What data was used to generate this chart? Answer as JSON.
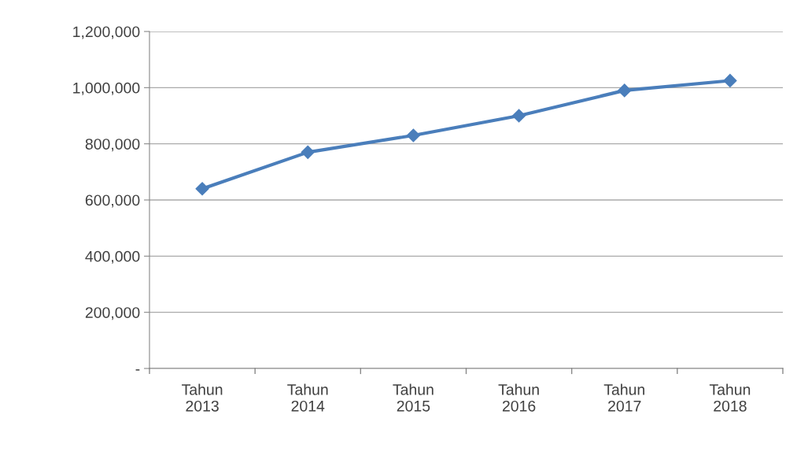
{
  "chart_data": {
    "type": "line",
    "categories": [
      "Tahun\n2013",
      "Tahun\n2014",
      "Tahun\n2015",
      "Tahun\n2016",
      "Tahun\n2017",
      "Tahun\n2018"
    ],
    "series": [
      {
        "color": "#4a7ebb",
        "values": [
          640000,
          770000,
          830000,
          900000,
          990000,
          1025000
        ]
      }
    ],
    "ylim": [
      0,
      1200000
    ],
    "yticks": [
      {
        "value": 0,
        "label": "-"
      },
      {
        "value": 200000,
        "label": "200,000"
      },
      {
        "value": 400000,
        "label": "400,000"
      },
      {
        "value": 600000,
        "label": "600,000"
      },
      {
        "value": 800000,
        "label": "800,000"
      },
      {
        "value": 1000000,
        "label": "1,000,000"
      },
      {
        "value": 1200000,
        "label": "1,200,000"
      }
    ],
    "grid": "y",
    "marker": "diamond",
    "line_style": "solid"
  }
}
